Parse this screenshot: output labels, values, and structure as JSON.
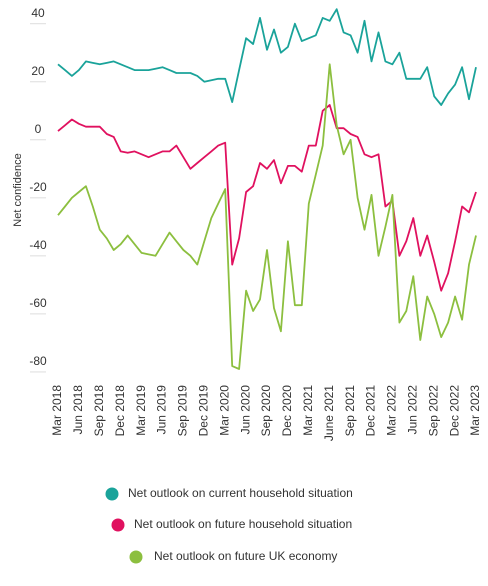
{
  "chart_data": {
    "type": "line",
    "y_label": "Net confidence",
    "categories": [
      "Mar 2018",
      null,
      null,
      "Jun 2018",
      null,
      null,
      "Sep 2018",
      null,
      null,
      "Dec 2018",
      null,
      null,
      "Mar 2019",
      null,
      null,
      "Jun 2019",
      null,
      null,
      "Sep 2019",
      null,
      null,
      "Dec 2019",
      null,
      null,
      "Mar 2020",
      null,
      null,
      "Jun 2020",
      null,
      null,
      "Sep 2020",
      null,
      null,
      "Dec 2020",
      null,
      null,
      "Mar 2021",
      null,
      null,
      "June 2021",
      null,
      null,
      "Sep 2021",
      null,
      null,
      "Dec 2021",
      null,
      null,
      "Mar 2022",
      null,
      null,
      "Jun 2022",
      null,
      null,
      "Sep 2022",
      null,
      null,
      "Dec 2022",
      null,
      null,
      "Mar 2023"
    ],
    "series": [
      {
        "name": "Net outlook on current household situation",
        "color": "#1aa39a",
        "values": [
          26,
          24,
          22,
          24,
          27,
          26.5,
          26,
          26.5,
          27,
          26,
          25,
          24,
          24,
          24,
          24.5,
          25,
          24,
          23,
          23,
          23,
          22,
          20,
          20.5,
          21,
          21,
          13,
          24,
          35,
          33,
          42,
          31,
          38,
          30,
          32,
          40,
          34,
          35,
          36,
          42,
          41,
          45,
          37,
          36,
          30,
          41,
          27,
          37,
          27,
          26,
          30,
          21,
          21,
          21,
          25,
          15,
          12,
          16,
          19,
          25,
          14,
          25
        ]
      },
      {
        "name": "Net outlook on future household situation",
        "color": "#e0115f",
        "values": [
          3,
          5,
          7,
          5.5,
          4.5,
          4.5,
          4.5,
          2,
          1,
          -4,
          -4.5,
          -4,
          -5,
          -6,
          -5,
          -4,
          -4,
          -2,
          -6,
          -10,
          -8,
          -6,
          -4,
          -2,
          -1,
          -43,
          -34,
          -18,
          -16,
          -8,
          -10,
          -7,
          -15,
          -9,
          -9,
          -11,
          -2,
          -2,
          10,
          12,
          4,
          4,
          2,
          1,
          -5,
          -6,
          -5,
          -23,
          -21,
          -40,
          -35,
          -27,
          -40,
          -33,
          -42,
          -52,
          -46,
          -35,
          -23,
          -25,
          -18
        ]
      },
      {
        "name": "Net outlook on future UK economy",
        "color": "#8cbf3f",
        "values": [
          -26,
          -23,
          -20,
          -18,
          -16,
          -23,
          -31,
          -34,
          -38,
          -36,
          -33,
          -36,
          -39,
          -39.5,
          -40,
          -36,
          -32,
          -35,
          -38,
          -40,
          -43,
          -35,
          -27,
          -22,
          -17,
          -78,
          -79,
          -52,
          -59,
          -55,
          -38,
          -58,
          -66,
          -35,
          -57,
          -57,
          -22,
          -12,
          -2,
          26,
          5,
          -5,
          0,
          -20,
          -31,
          -19,
          -40,
          -30,
          -19,
          -63,
          -59,
          -47,
          -69,
          -54,
          -60,
          -68,
          -63,
          -54,
          -62,
          -43,
          -33
        ]
      }
    ],
    "ylim": [
      -82,
      46
    ],
    "yticks": [
      -80,
      -60,
      -40,
      -20,
      0,
      20,
      40
    ],
    "grid": true
  }
}
